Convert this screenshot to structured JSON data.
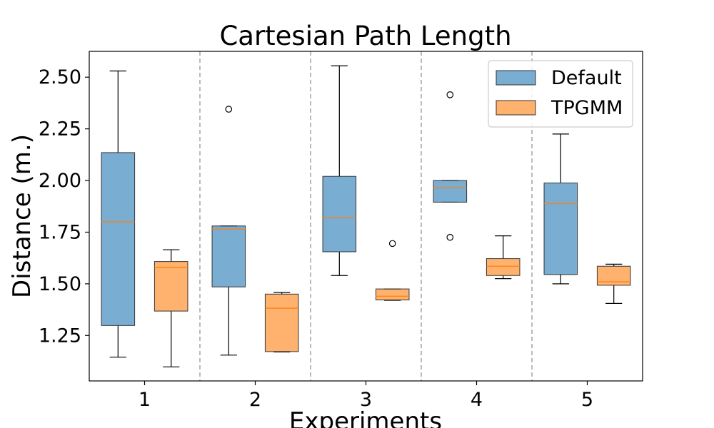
{
  "chart_data": {
    "type": "box",
    "title": "Cartesian Path Length",
    "xlabel": "Experiments",
    "ylabel": "Distance (m.)",
    "categories": [
      "1",
      "2",
      "3",
      "4",
      "5"
    ],
    "ylim": [
      1.03,
      2.625
    ],
    "yticks": [
      "1.25",
      "1.50",
      "1.75",
      "2.00",
      "2.25",
      "2.50"
    ],
    "grid": false,
    "legend_position": "top-right",
    "group_separators": true,
    "series": [
      {
        "name": "Default",
        "color": "#1f77b4",
        "boxes": [
          {
            "whisker_low": 1.145,
            "q1": 1.298,
            "median": 1.8,
            "q3": 2.135,
            "whisker_high": 2.53,
            "outliers": []
          },
          {
            "whisker_low": 1.155,
            "q1": 1.485,
            "median": 1.765,
            "q3": 1.78,
            "whisker_high": 1.78,
            "outliers": [
              2.345
            ]
          },
          {
            "whisker_low": 1.54,
            "q1": 1.655,
            "median": 1.82,
            "q3": 2.02,
            "whisker_high": 2.555,
            "outliers": []
          },
          {
            "whisker_low": 1.895,
            "q1": 1.895,
            "median": 1.965,
            "q3": 2.0,
            "whisker_high": 2.0,
            "outliers": [
              2.415,
              1.725
            ]
          },
          {
            "whisker_low": 1.5,
            "q1": 1.545,
            "median": 1.888,
            "q3": 1.988,
            "whisker_high": 2.225,
            "outliers": []
          }
        ]
      },
      {
        "name": "TPGMM",
        "color": "#ff7f0e",
        "boxes": [
          {
            "whisker_low": 1.098,
            "q1": 1.368,
            "median": 1.58,
            "q3": 1.608,
            "whisker_high": 1.665,
            "outliers": []
          },
          {
            "whisker_low": 1.17,
            "q1": 1.172,
            "median": 1.382,
            "q3": 1.45,
            "whisker_high": 1.458,
            "outliers": []
          },
          {
            "whisker_low": 1.42,
            "q1": 1.422,
            "median": 1.44,
            "q3": 1.475,
            "whisker_high": 1.475,
            "outliers": [
              1.695
            ]
          },
          {
            "whisker_low": 1.525,
            "q1": 1.54,
            "median": 1.585,
            "q3": 1.622,
            "whisker_high": 1.732,
            "outliers": []
          },
          {
            "whisker_low": 1.405,
            "q1": 1.493,
            "median": 1.51,
            "q3": 1.585,
            "whisker_high": 1.595,
            "outliers": []
          }
        ]
      }
    ]
  }
}
